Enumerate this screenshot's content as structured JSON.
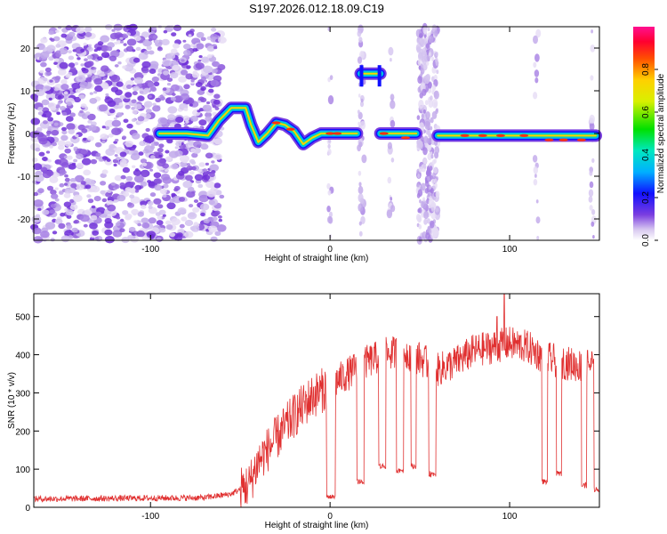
{
  "title": "S197.2026.012.18.09.C19",
  "chart_data": [
    {
      "type": "heatmap",
      "name": "spectrogram",
      "xlabel": "Height of straight line (km)",
      "ylabel": "Frequency (Hz)",
      "xlim": [
        -165,
        150
      ],
      "ylim": [
        -25,
        25
      ],
      "xticks": [
        -100,
        0,
        100
      ],
      "yticks": [
        -20,
        -10,
        0,
        10,
        20
      ],
      "xtick_labels": [
        "-100",
        "0",
        "100"
      ],
      "ytick_labels": [
        "-20",
        "-10",
        "0",
        "10",
        "20"
      ],
      "colorbar": {
        "label": "Normalized spectral amplitude",
        "range": [
          0,
          1
        ],
        "ticks": [
          0,
          0.2,
          0.4,
          0.6,
          0.8
        ],
        "tick_labels": [
          "0.0",
          "0.2",
          "0.4",
          "0.6",
          "0.8"
        ]
      },
      "trace": [
        {
          "x": -95,
          "f": 0
        },
        {
          "x": -80,
          "f": 0
        },
        {
          "x": -68,
          "f": -0.5
        },
        {
          "x": -62,
          "f": 3
        },
        {
          "x": -55,
          "f": 6
        },
        {
          "x": -47,
          "f": 6
        },
        {
          "x": -44,
          "f": 2
        },
        {
          "x": -40,
          "f": -2
        },
        {
          "x": -35,
          "f": 0
        },
        {
          "x": -30,
          "f": 2.5
        },
        {
          "x": -25,
          "f": 2
        },
        {
          "x": -20,
          "f": 0.5
        },
        {
          "x": -15,
          "f": -2.5
        },
        {
          "x": -10,
          "f": -1
        },
        {
          "x": -5,
          "f": 0
        },
        {
          "x": 10,
          "f": 0
        },
        {
          "x": 15,
          "f": 0
        }
      ],
      "segments": [
        {
          "x0": 28,
          "x1": 48,
          "f": 0
        },
        {
          "x0": 60,
          "x1": 148,
          "f": -0.5
        }
      ],
      "high_tone": {
        "x0": 17,
        "x1": 28,
        "f": 14
      }
    },
    {
      "type": "line",
      "name": "snr",
      "xlabel": "Height of straight line (km)",
      "ylabel": "SNR (10 * v/v)",
      "xlim": [
        -165,
        150
      ],
      "ylim": [
        0,
        560
      ],
      "xticks": [
        -100,
        0,
        100
      ],
      "yticks": [
        0,
        100,
        200,
        300,
        400,
        500
      ],
      "xtick_labels": [
        "-100",
        "0",
        "100"
      ],
      "ytick_labels": [
        "0",
        "100",
        "200",
        "300",
        "400",
        "500"
      ],
      "color": "#e03030",
      "baseline": [
        [
          -165,
          22
        ],
        [
          -70,
          25
        ],
        [
          -55,
          35
        ],
        [
          -45,
          60
        ],
        [
          -40,
          120
        ],
        [
          -30,
          180
        ],
        [
          -20,
          240
        ],
        [
          -10,
          290
        ],
        [
          0,
          320
        ],
        [
          10,
          350
        ],
        [
          20,
          380
        ],
        [
          30,
          400
        ],
        [
          40,
          410
        ],
        [
          50,
          390
        ],
        [
          60,
          360
        ],
        [
          70,
          380
        ],
        [
          80,
          410
        ],
        [
          90,
          420
        ],
        [
          100,
          430
        ],
        [
          110,
          420
        ],
        [
          120,
          390
        ],
        [
          130,
          380
        ],
        [
          140,
          370
        ],
        [
          150,
          380
        ]
      ],
      "dropouts": [
        [
          -2,
          3,
          20
        ],
        [
          15,
          19,
          60
        ],
        [
          27,
          31,
          100
        ],
        [
          37,
          41,
          90
        ],
        [
          45,
          48,
          100
        ],
        [
          55,
          59,
          80
        ],
        [
          118,
          121,
          60
        ],
        [
          126,
          129,
          80
        ],
        [
          140,
          143,
          50
        ],
        [
          147,
          150,
          40
        ]
      ],
      "spikes": [
        [
          97,
          560
        ],
        [
          93,
          500
        ]
      ]
    }
  ]
}
